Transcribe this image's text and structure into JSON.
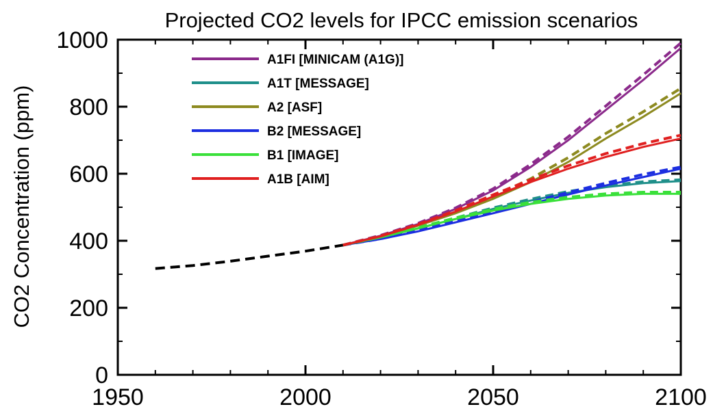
{
  "chart_data": {
    "type": "line",
    "title": "Projected CO2 levels for IPCC emission scenarios",
    "xlabel": "",
    "ylabel": "CO2 Concentration (ppm)",
    "xlim": [
      1950,
      2100
    ],
    "ylim": [
      0,
      1000
    ],
    "xticks": [
      1950,
      2000,
      2050,
      2100
    ],
    "yticks": [
      0,
      200,
      400,
      600,
      800,
      1000
    ],
    "legend_position": "top-left",
    "grid": false,
    "historical": {
      "style": "dashed",
      "color": "#000000",
      "x": [
        1960,
        1970,
        1980,
        1990,
        2000,
        2010
      ],
      "y": [
        317,
        326,
        339,
        354,
        369,
        387
      ]
    },
    "series": [
      {
        "name": "A1FI [MINICAM (A1G)]",
        "color": "#8b2a8b",
        "x": [
          2010,
          2020,
          2030,
          2040,
          2050,
          2060,
          2070,
          2080,
          2090,
          2100
        ],
        "y": [
          387,
          415,
          450,
          495,
          550,
          620,
          700,
          790,
          880,
          975
        ],
        "y_dashed": [
          387,
          416,
          452,
          498,
          555,
          628,
          710,
          802,
          895,
          990
        ]
      },
      {
        "name": "A1T [MESSAGE]",
        "color": "#1f8f8a",
        "x": [
          2010,
          2020,
          2030,
          2040,
          2050,
          2060,
          2070,
          2080,
          2090,
          2100
        ],
        "y": [
          387,
          410,
          437,
          465,
          495,
          520,
          543,
          560,
          572,
          578
        ],
        "y_dashed": [
          387,
          411,
          439,
          468,
          498,
          524,
          547,
          564,
          576,
          582
        ]
      },
      {
        "name": "A2 [ASF]",
        "color": "#8d8a20",
        "x": [
          2010,
          2020,
          2030,
          2040,
          2050,
          2060,
          2070,
          2080,
          2090,
          2100
        ],
        "y": [
          387,
          412,
          445,
          482,
          525,
          575,
          635,
          705,
          770,
          840
        ],
        "y_dashed": [
          387,
          414,
          448,
          487,
          532,
          585,
          648,
          720,
          785,
          855
        ]
      },
      {
        "name": "B2 [MESSAGE]",
        "color": "#1c2ee0",
        "x": [
          2010,
          2020,
          2030,
          2040,
          2050,
          2060,
          2070,
          2080,
          2090,
          2100
        ],
        "y": [
          387,
          405,
          428,
          455,
          482,
          510,
          538,
          565,
          590,
          615
        ],
        "y_dashed": [
          387,
          406,
          430,
          458,
          486,
          515,
          544,
          572,
          598,
          620
        ]
      },
      {
        "name": "B1 [IMAGE]",
        "color": "#3ae03a",
        "x": [
          2010,
          2020,
          2030,
          2040,
          2050,
          2060,
          2070,
          2080,
          2090,
          2100
        ],
        "y": [
          387,
          410,
          437,
          465,
          490,
          510,
          525,
          535,
          540,
          540
        ],
        "y_dashed": [
          387,
          411,
          439,
          468,
          494,
          515,
          530,
          540,
          545,
          545
        ]
      },
      {
        "name": "A1B [AIM]",
        "color": "#e02020",
        "x": [
          2010,
          2020,
          2030,
          2040,
          2050,
          2060,
          2070,
          2080,
          2090,
          2100
        ],
        "y": [
          387,
          413,
          447,
          487,
          532,
          575,
          615,
          650,
          680,
          705
        ],
        "y_dashed": [
          387,
          414,
          449,
          490,
          537,
          582,
          624,
          660,
          690,
          715
        ]
      }
    ]
  }
}
